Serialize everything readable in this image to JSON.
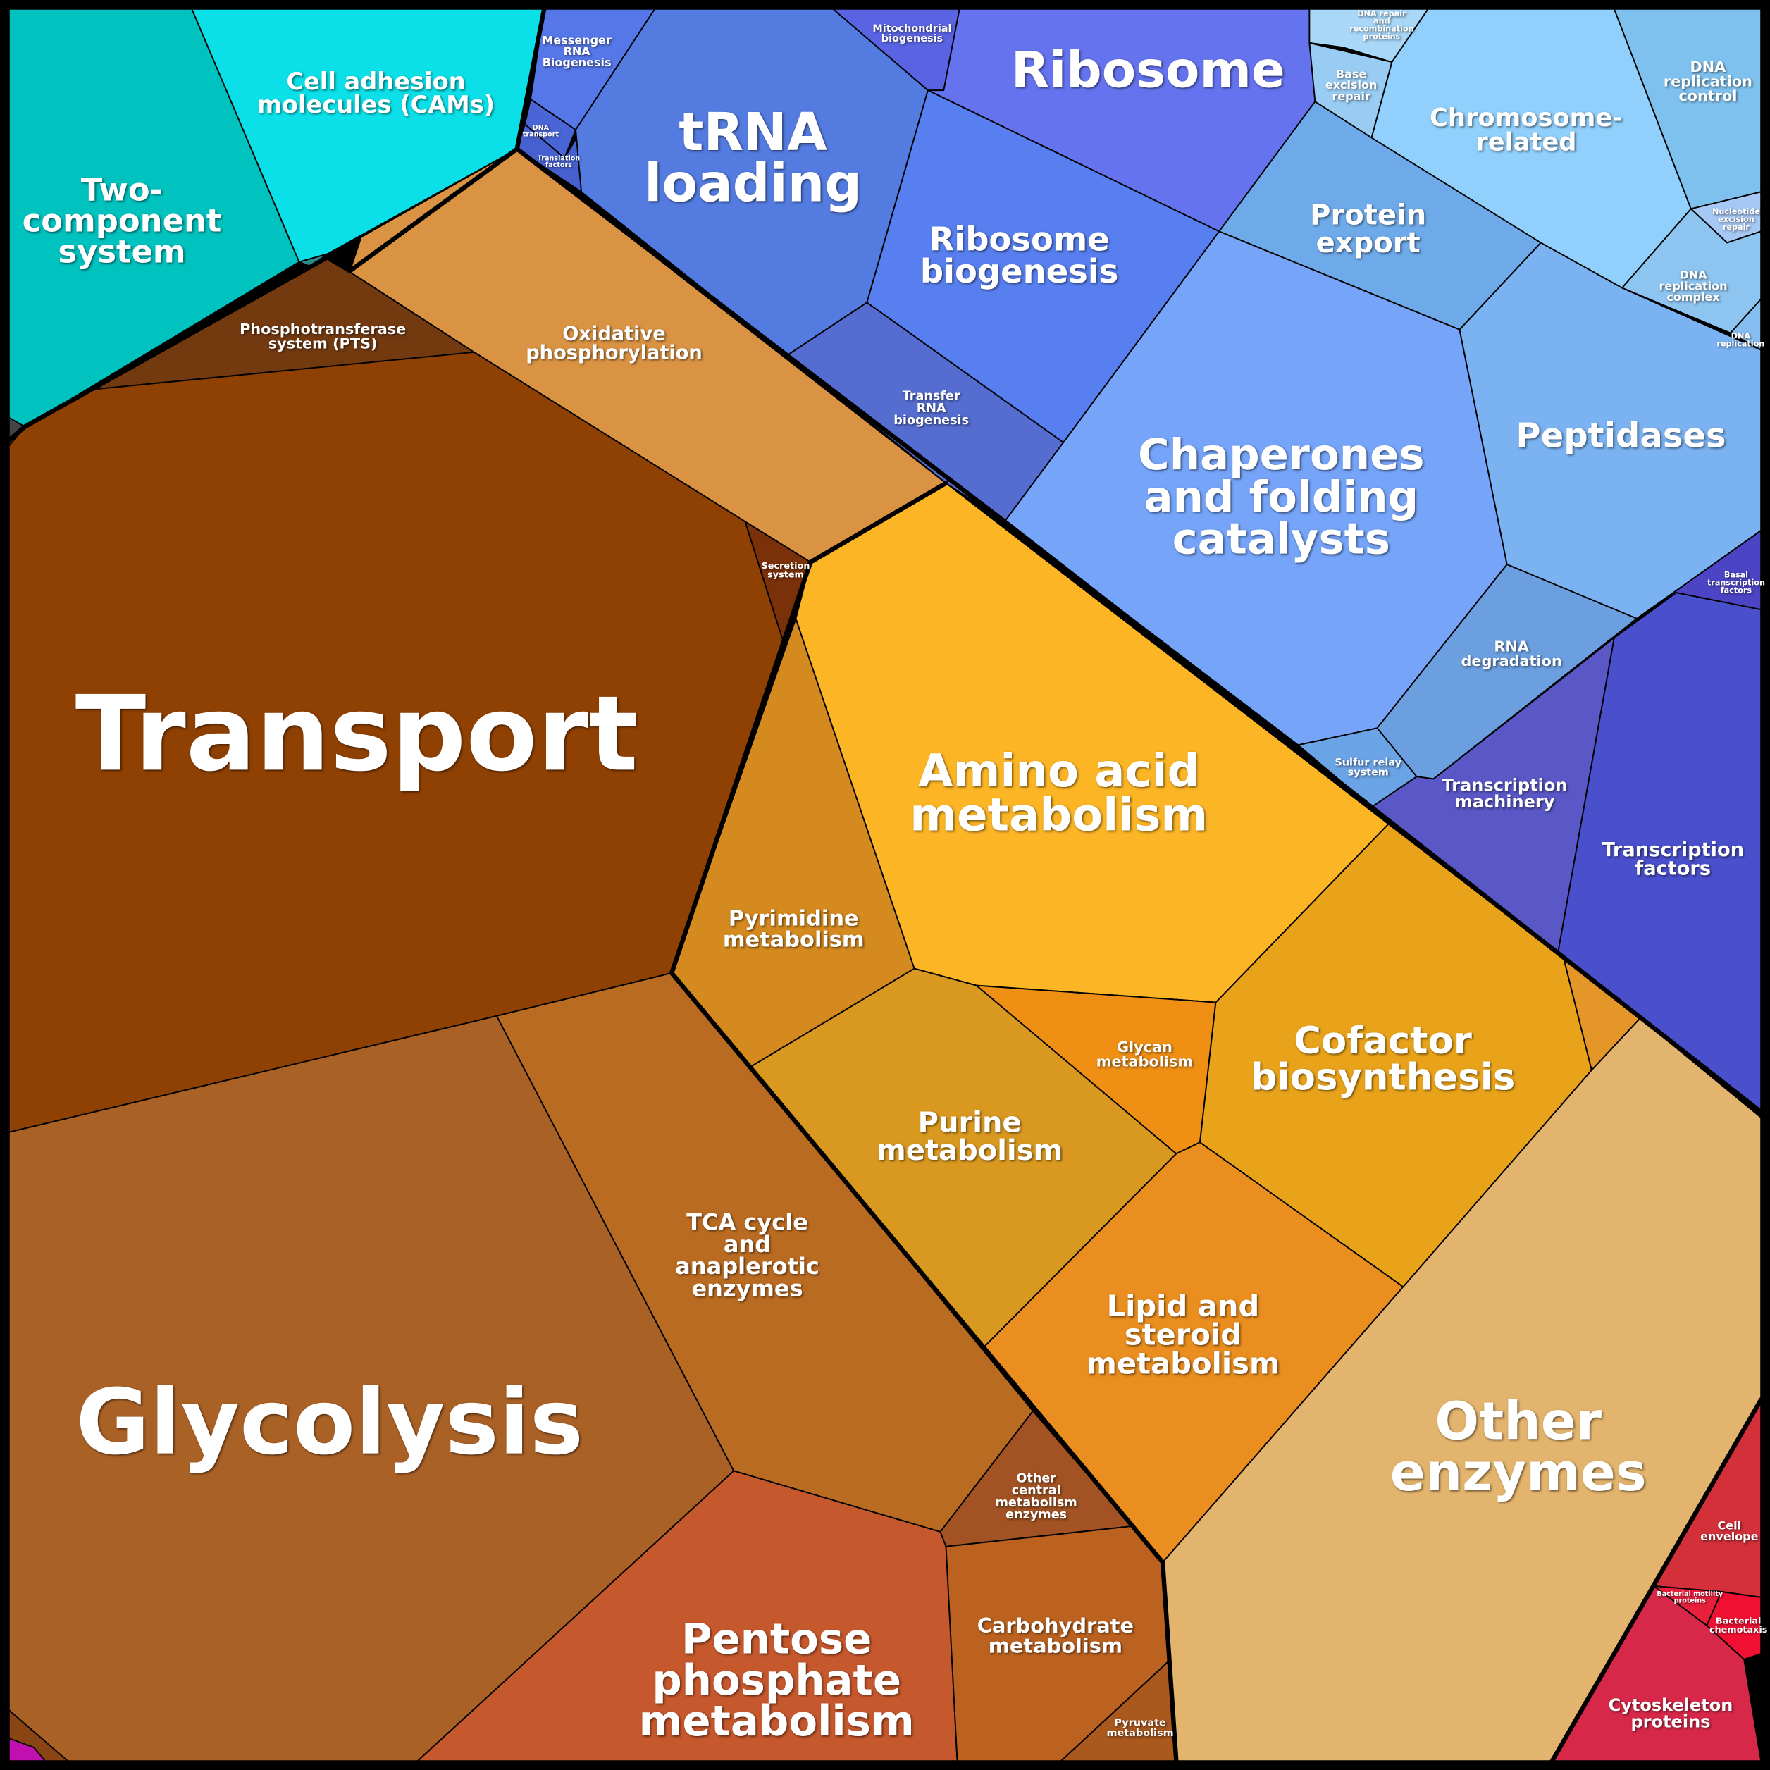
{
  "nodes": [
    {
      "label": [
        "Two-",
        "component",
        "system"
      ]
    },
    {
      "label": [
        "Cell adhesion",
        "molecules (CAMs)"
      ]
    },
    {
      "label": [
        "Messenger",
        "RNA",
        "Biogenesis"
      ]
    },
    {
      "label": [
        "DNA",
        "transport"
      ]
    },
    {
      "label": [
        "Translation",
        "factors"
      ]
    },
    {
      "label": [
        "tRNA",
        "loading"
      ]
    },
    {
      "label": [
        "Mitochondrial",
        "biogenesis"
      ]
    },
    {
      "label": [
        "Ribosome"
      ]
    },
    {
      "label": [
        "Ribosome",
        "biogenesis"
      ]
    },
    {
      "label": [
        "Transfer",
        "RNA",
        "biogenesis"
      ]
    },
    {
      "label": [
        "Protein",
        "export"
      ]
    },
    {
      "label": [
        "Chromosome-",
        "related"
      ]
    },
    {
      "label": [
        "DNA",
        "replication",
        "control"
      ]
    },
    {
      "label": [
        "Base",
        "excision",
        "repair"
      ]
    },
    {
      "label": [
        "DNA repair",
        "and",
        "recombination",
        "proteins"
      ]
    },
    {
      "label": [
        "Nucleotide",
        "excision",
        "repair"
      ]
    },
    {
      "label": [
        "DNA",
        "replication",
        "complex"
      ]
    },
    {
      "label": [
        "DNA",
        "replication"
      ]
    },
    {
      "label": [
        "Chaperones",
        "and folding",
        "catalysts"
      ]
    },
    {
      "label": [
        "Peptidases"
      ]
    },
    {
      "label": [
        "RNA",
        "degradation"
      ]
    },
    {
      "label": [
        "Sulfur relay",
        "system"
      ]
    },
    {
      "label": [
        "Basal",
        "transcription",
        "factors"
      ]
    },
    {
      "label": [
        "Transcription",
        "machinery"
      ]
    },
    {
      "label": [
        "Transcription",
        "factors"
      ]
    },
    {
      "label": [
        "Phosphotransferase",
        "system (PTS)"
      ]
    },
    {
      "label": [
        "Oxidative",
        "phosphorylation"
      ]
    },
    {
      "label": [
        "Secretion",
        "system"
      ]
    },
    {
      "label": [
        "Transport"
      ]
    },
    {
      "label": [
        "Glycolysis"
      ]
    },
    {
      "label": [
        "TCA cycle",
        "and",
        "anaplerotic",
        "enzymes"
      ]
    },
    {
      "label": [
        "Pentose",
        "phosphate",
        "metabolism"
      ]
    },
    {
      "label": [
        "Other",
        "central",
        "metabolism",
        "enzymes"
      ]
    },
    {
      "label": [
        "Carbohydrate",
        "metabolism"
      ]
    },
    {
      "label": [
        "Pyruvate",
        "metabolism"
      ]
    },
    {
      "label": [
        "Pyrimidine",
        "metabolism"
      ]
    },
    {
      "label": [
        "Amino acid",
        "metabolism"
      ]
    },
    {
      "label": [
        "Purine",
        "metabolism"
      ]
    },
    {
      "label": [
        "Glycan",
        "metabolism"
      ]
    },
    {
      "label": [
        "Cofactor",
        "biosynthesis"
      ]
    },
    {
      "label": [
        "Lipid and",
        "steroid",
        "metabolism"
      ]
    },
    {
      "label": [
        "Other",
        "enzymes"
      ]
    },
    {
      "label": [
        "Cell",
        "envelope"
      ]
    },
    {
      "label": [
        "Bacterial motility",
        "proteins"
      ]
    },
    {
      "label": [
        "Bacterial",
        "chemotaxis"
      ]
    },
    {
      "label": [
        "Cytoskeleton",
        "proteins"
      ]
    }
  ]
}
